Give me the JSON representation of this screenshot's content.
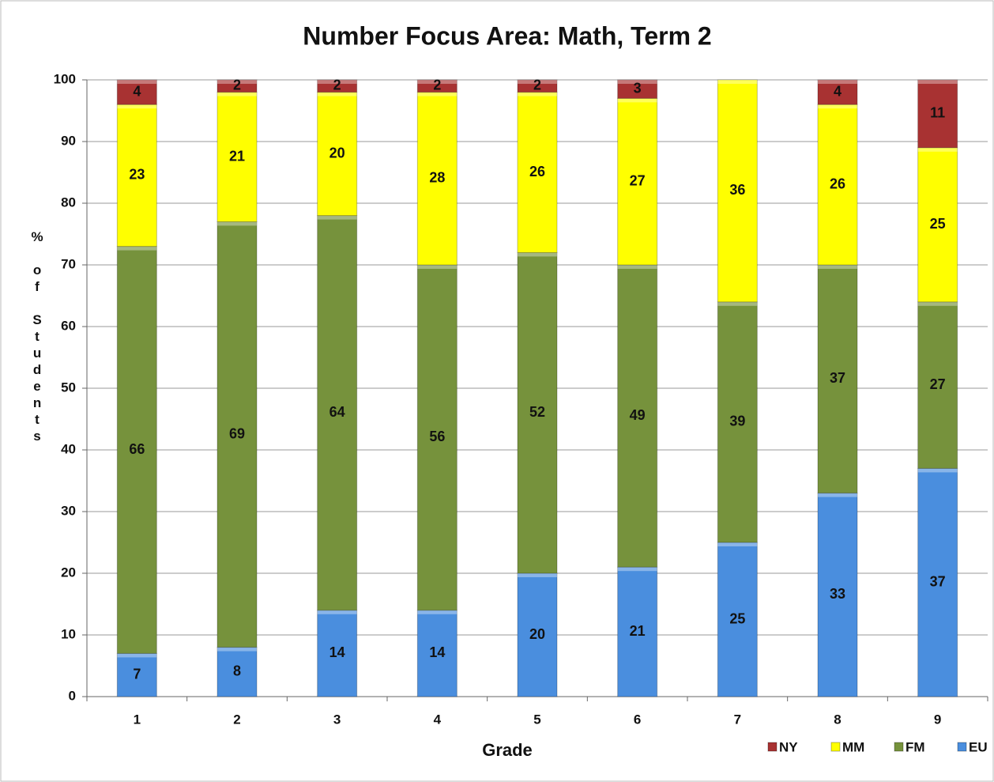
{
  "chart_data": {
    "type": "stacked_bar",
    "title": "Number Focus Area: Math, Term 2",
    "x_label": "Grade",
    "y_label": "% of Students",
    "categories": [
      "1",
      "2",
      "3",
      "4",
      "5",
      "6",
      "7",
      "8",
      "9"
    ],
    "series": [
      {
        "name": "EU",
        "color": "#4a8ede",
        "values": [
          7,
          8,
          14,
          14,
          20,
          21,
          25,
          33,
          37
        ]
      },
      {
        "name": "FM",
        "color": "#76923c",
        "values": [
          66,
          69,
          64,
          56,
          52,
          49,
          39,
          37,
          27
        ]
      },
      {
        "name": "MM",
        "color": "#ffff00",
        "values": [
          23,
          21,
          20,
          28,
          26,
          27,
          36,
          26,
          25
        ]
      },
      {
        "name": "NY",
        "color": "#a83232",
        "values": [
          4,
          2,
          2,
          2,
          2,
          3,
          null,
          4,
          11
        ]
      }
    ],
    "ylim": [
      0,
      100
    ],
    "yticks": [
      0,
      10,
      20,
      30,
      40,
      50,
      60,
      70,
      80,
      90,
      100
    ],
    "grid": true,
    "legend": "bottom-right"
  }
}
